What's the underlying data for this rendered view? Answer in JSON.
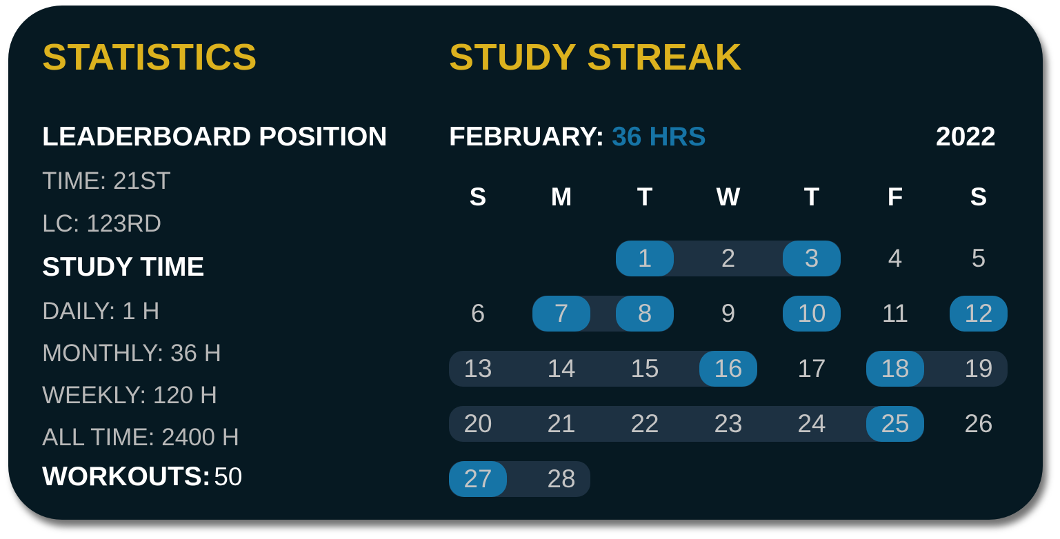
{
  "statistics": {
    "title": "STATISTICS",
    "leaderboard_heading": "LEADERBOARD POSITION",
    "time": "TIME: 21ST",
    "lc": "LC: 123RD",
    "study_time_heading": "STUDY TIME",
    "daily": "DAILY: 1 H",
    "monthly": "MONTHLY: 36 H",
    "weekly": "WEEKLY: 120 H",
    "all_time": "ALL TIME: 2400 H",
    "workouts_label": "WORKOUTS:",
    "workouts_value": "50"
  },
  "streak": {
    "title": "STUDY STREAK",
    "month_label": "FEBRUARY:",
    "month_hours": "36 HRS",
    "year": "2022",
    "weekdays": [
      "S",
      "M",
      "T",
      "W",
      "T",
      "F",
      "S"
    ],
    "days_in_month": 28,
    "first_weekday": 2,
    "highlighted_days": [
      1,
      3,
      7,
      8,
      10,
      12,
      16,
      18,
      25,
      27
    ],
    "streak_ranges": [
      [
        1,
        3
      ],
      [
        7,
        8
      ],
      [
        13,
        16
      ],
      [
        18,
        19
      ],
      [
        20,
        25
      ],
      [
        27,
        28
      ]
    ],
    "colors": {
      "highlight": "#1674a6",
      "streak": "#1d3142",
      "title": "#dcb21e"
    }
  }
}
